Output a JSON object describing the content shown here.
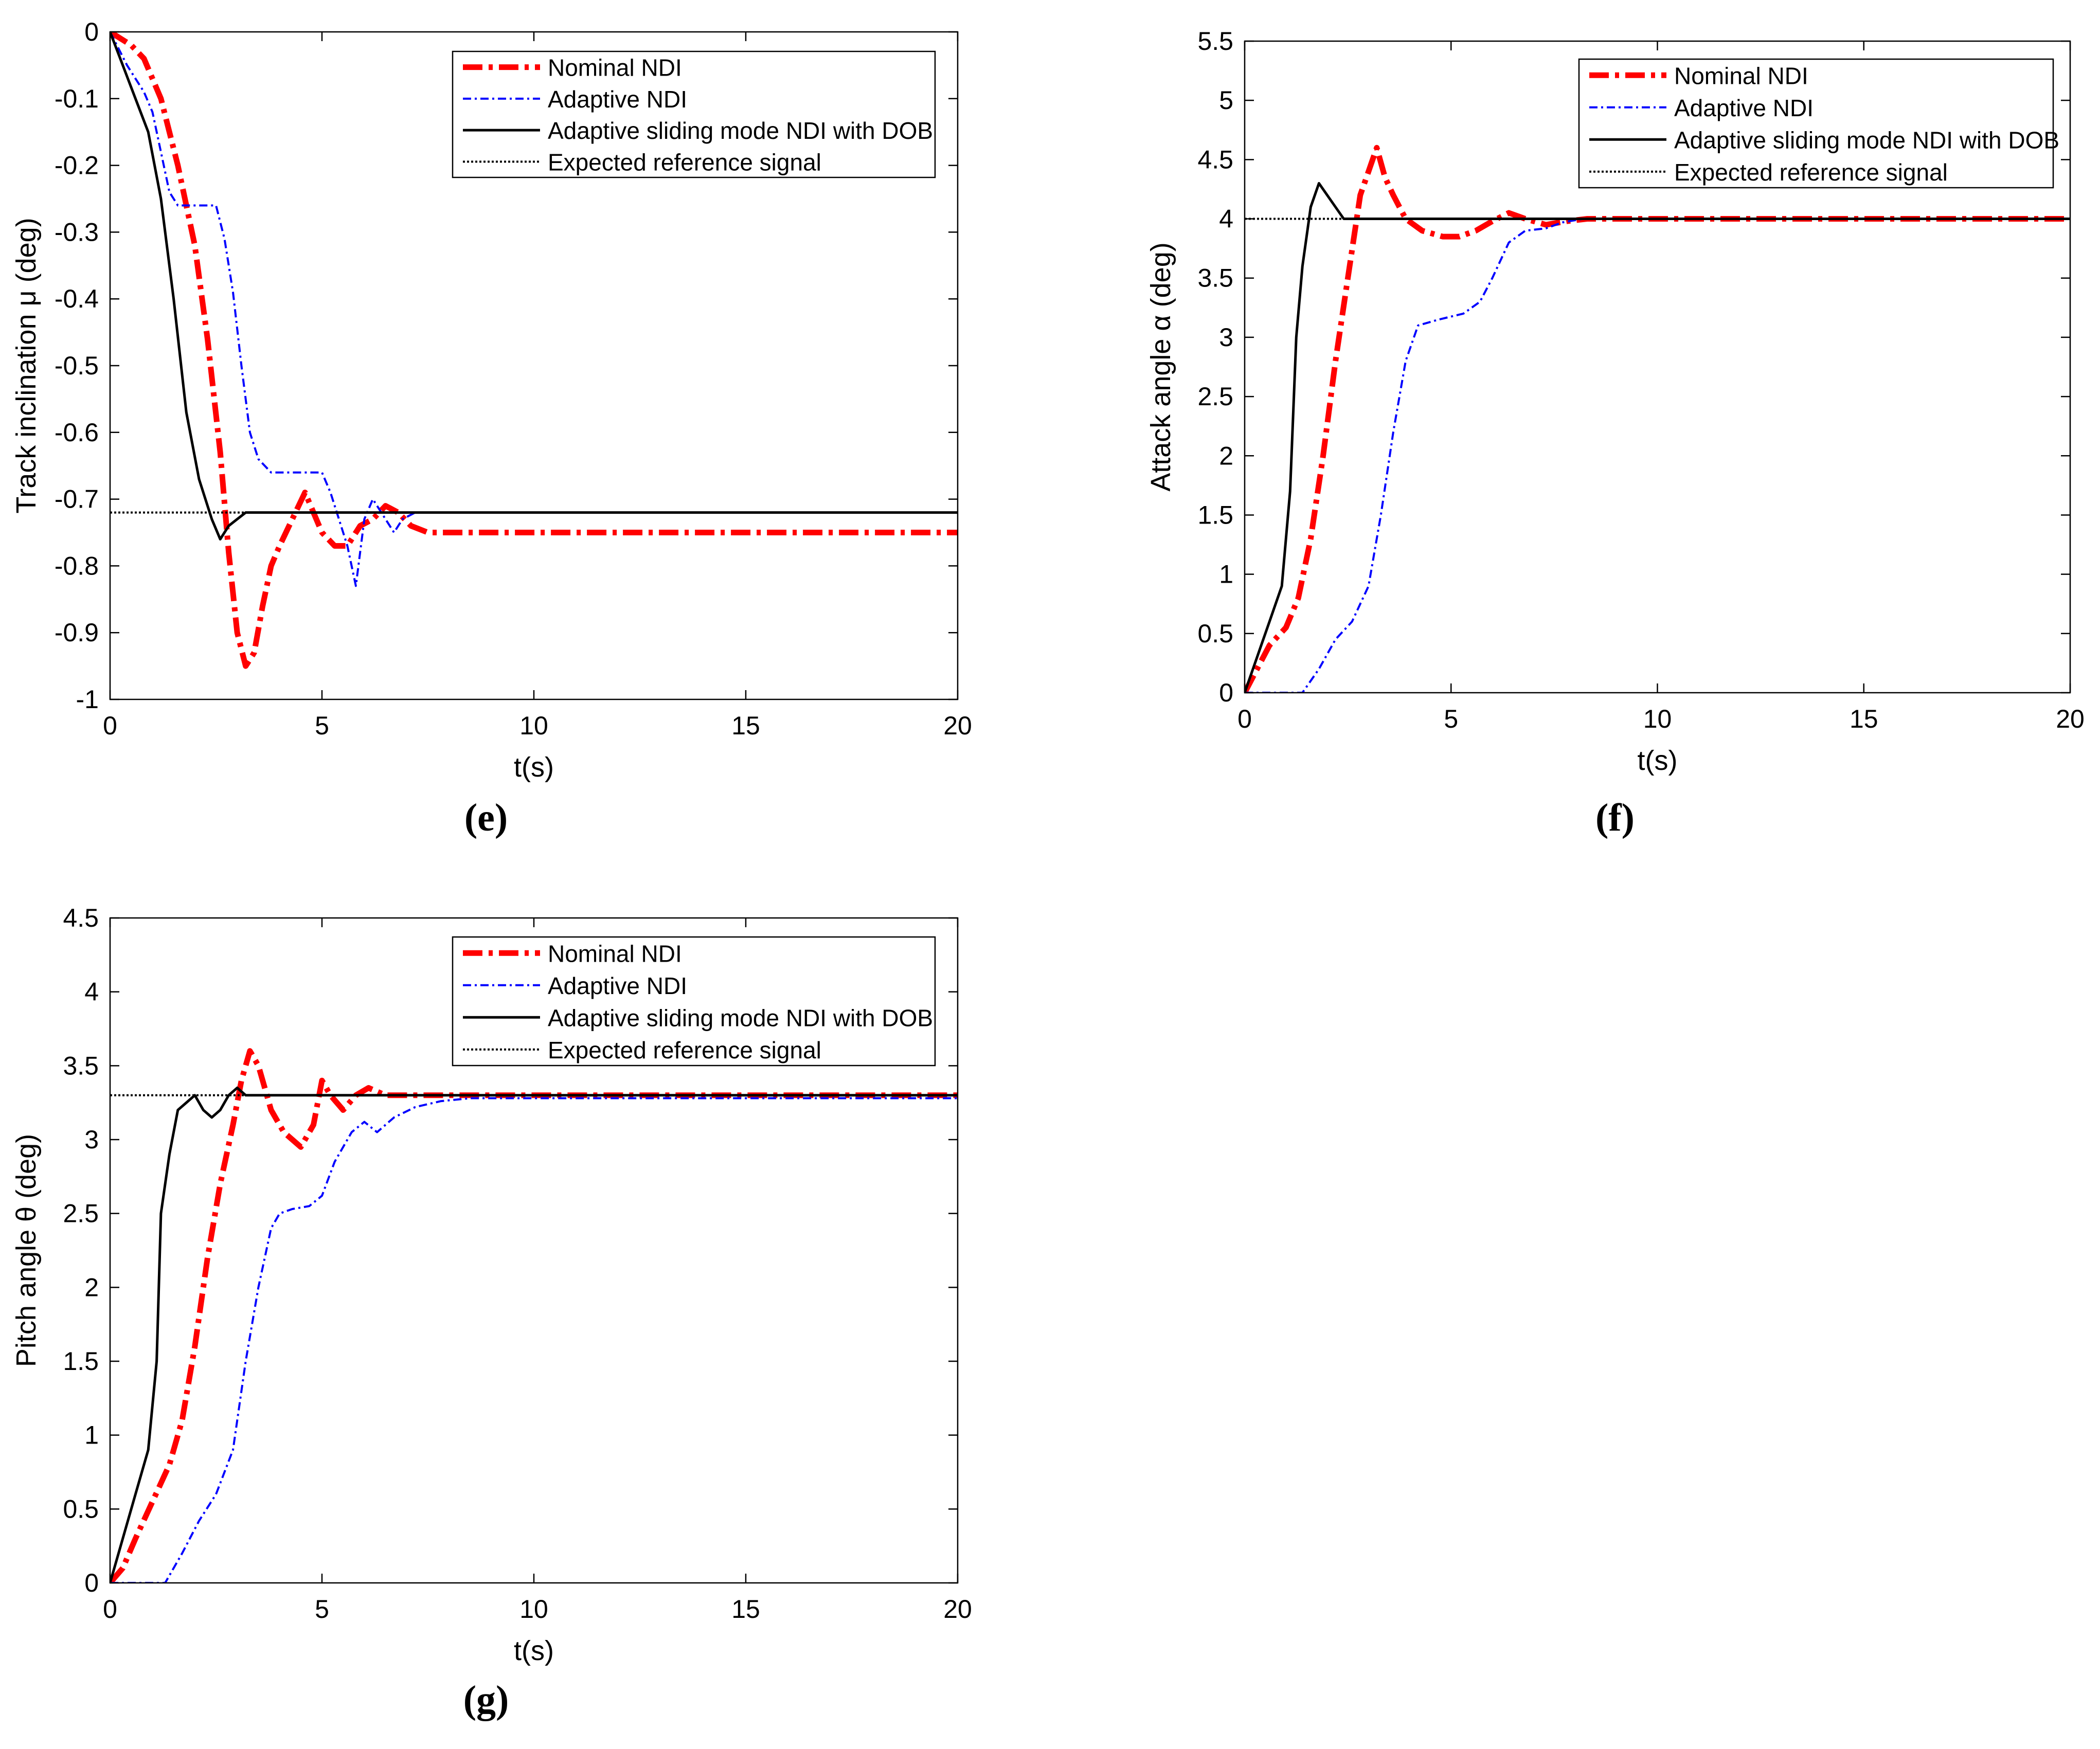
{
  "chart_data": [
    {
      "panel_id": "e",
      "caption": "(e)",
      "type": "line",
      "title": "",
      "xlabel": "t(s)",
      "ylabel": "Track inclination μ (deg)",
      "xlim": [
        0,
        20
      ],
      "ylim": [
        -1,
        0
      ],
      "xticks": [
        0,
        5,
        10,
        15,
        20
      ],
      "yticks": [
        0,
        -0.1,
        -0.2,
        -0.3,
        -0.4,
        -0.5,
        -0.6,
        -0.7,
        -0.8,
        -0.9,
        -1
      ],
      "ytick_labels": [
        "0",
        "-0.1",
        "-0.2",
        "-0.3",
        "-0.4",
        "-0.5",
        "-0.6",
        "-0.7",
        "-0.8",
        "-0.9",
        "-1"
      ],
      "grid": false,
      "legend_position": "top-right",
      "series": [
        {
          "name": "Nominal NDI",
          "color": "#ff0000",
          "style": "dashdot-thick",
          "x": [
            0,
            0.5,
            0.8,
            1.2,
            1.6,
            2.0,
            2.3,
            2.6,
            2.8,
            3.0,
            3.2,
            3.4,
            3.6,
            3.8,
            4.0,
            4.3,
            4.6,
            4.8,
            5.0,
            5.3,
            5.6,
            5.9,
            6.2,
            6.5,
            6.8,
            7.1,
            7.5,
            20
          ],
          "y": [
            0,
            -0.02,
            -0.04,
            -0.1,
            -0.2,
            -0.32,
            -0.46,
            -0.63,
            -0.78,
            -0.9,
            -0.95,
            -0.93,
            -0.86,
            -0.8,
            -0.77,
            -0.73,
            -0.69,
            -0.72,
            -0.75,
            -0.77,
            -0.77,
            -0.74,
            -0.73,
            -0.71,
            -0.72,
            -0.74,
            -0.75,
            -0.75
          ]
        },
        {
          "name": "Adaptive NDI",
          "color": "#0000ff",
          "style": "dashdot-thin",
          "x": [
            0,
            0.4,
            0.8,
            1.0,
            1.2,
            1.4,
            1.6,
            2.0,
            2.3,
            2.5,
            2.7,
            2.9,
            3.1,
            3.3,
            3.5,
            3.8,
            4.2,
            5.0,
            5.2,
            5.4,
            5.6,
            5.8,
            6.0,
            6.2,
            6.4,
            6.7,
            6.9,
            7.2,
            20
          ],
          "y": [
            0,
            -0.05,
            -0.09,
            -0.12,
            -0.18,
            -0.24,
            -0.26,
            -0.26,
            -0.26,
            -0.26,
            -0.31,
            -0.39,
            -0.5,
            -0.6,
            -0.64,
            -0.66,
            -0.66,
            -0.66,
            -0.69,
            -0.73,
            -0.77,
            -0.83,
            -0.73,
            -0.7,
            -0.72,
            -0.75,
            -0.73,
            -0.72,
            -0.72
          ]
        },
        {
          "name": "Adaptive sliding mode NDI with DOB",
          "color": "#000000",
          "style": "solid",
          "x": [
            0,
            0.3,
            0.6,
            0.9,
            1.2,
            1.5,
            1.8,
            2.1,
            2.4,
            2.6,
            2.8,
            3.0,
            3.2,
            20
          ],
          "y": [
            0,
            -0.05,
            -0.1,
            -0.15,
            -0.25,
            -0.4,
            -0.57,
            -0.67,
            -0.73,
            -0.76,
            -0.74,
            -0.73,
            -0.72,
            -0.72
          ]
        },
        {
          "name": "Expected reference signal",
          "color": "#000000",
          "style": "dotted",
          "x": [
            0,
            20
          ],
          "y": [
            -0.72,
            -0.72
          ]
        }
      ]
    },
    {
      "panel_id": "f",
      "caption": "(f)",
      "type": "line",
      "title": "",
      "xlabel": "t(s)",
      "ylabel": "Attack angle α (deg)",
      "xlim": [
        0,
        20
      ],
      "ylim": [
        0,
        5.5
      ],
      "xticks": [
        0,
        5,
        10,
        15,
        20
      ],
      "yticks": [
        0,
        0.5,
        1,
        1.5,
        2,
        2.5,
        3,
        3.5,
        4,
        4.5,
        5,
        5.5
      ],
      "ytick_labels": [
        "0",
        "0.5",
        "1",
        "1.5",
        "2",
        "2.5",
        "3",
        "3.5",
        "4",
        "4.5",
        "5",
        "5.5"
      ],
      "grid": false,
      "legend_position": "top-right",
      "series": [
        {
          "name": "Nominal NDI",
          "color": "#ff0000",
          "style": "dashdot-thick",
          "x": [
            0,
            0.3,
            0.6,
            1.0,
            1.3,
            1.6,
            1.9,
            2.2,
            2.5,
            2.8,
            3.0,
            3.2,
            3.4,
            3.6,
            3.9,
            4.3,
            4.8,
            5.2,
            5.6,
            6.0,
            6.4,
            6.8,
            7.3,
            7.8,
            8.3,
            20
          ],
          "y": [
            0,
            0.2,
            0.4,
            0.55,
            0.8,
            1.3,
            2.0,
            2.8,
            3.5,
            4.2,
            4.4,
            4.6,
            4.35,
            4.2,
            4.0,
            3.9,
            3.85,
            3.85,
            3.9,
            3.98,
            4.05,
            4.0,
            3.95,
            3.98,
            4.0,
            4.0
          ]
        },
        {
          "name": "Adaptive NDI",
          "color": "#0000ff",
          "style": "dashdot-thin",
          "x": [
            0,
            1.4,
            1.8,
            2.2,
            2.6,
            3.0,
            3.3,
            3.6,
            3.9,
            4.2,
            4.7,
            5.3,
            5.7,
            6.0,
            6.4,
            6.8,
            7.3,
            7.7,
            8.2,
            20
          ],
          "y": [
            0,
            0,
            0.2,
            0.45,
            0.6,
            0.9,
            1.5,
            2.2,
            2.8,
            3.1,
            3.15,
            3.2,
            3.3,
            3.5,
            3.8,
            3.9,
            3.92,
            3.97,
            4.0,
            4.0
          ]
        },
        {
          "name": "Adaptive sliding mode NDI with DOB",
          "color": "#000000",
          "style": "solid",
          "x": [
            0,
            0.3,
            0.6,
            0.9,
            1.1,
            1.25,
            1.4,
            1.6,
            1.8,
            2.1,
            2.4,
            20
          ],
          "y": [
            0,
            0.3,
            0.6,
            0.9,
            1.7,
            3.0,
            3.6,
            4.1,
            4.3,
            4.15,
            4.0,
            4.0
          ]
        },
        {
          "name": "Expected reference signal",
          "color": "#000000",
          "style": "dotted",
          "x": [
            0,
            20
          ],
          "y": [
            4,
            4
          ]
        }
      ]
    },
    {
      "panel_id": "g",
      "caption": "(g)",
      "type": "line",
      "title": "",
      "xlabel": "t(s)",
      "ylabel": "Pitch angle θ (deg)",
      "xlim": [
        0,
        20
      ],
      "ylim": [
        0,
        4.5
      ],
      "xticks": [
        0,
        5,
        10,
        15,
        20
      ],
      "yticks": [
        0,
        0.5,
        1,
        1.5,
        2,
        2.5,
        3,
        3.5,
        4,
        4.5
      ],
      "ytick_labels": [
        "0",
        "0.5",
        "1",
        "1.5",
        "2",
        "2.5",
        "3",
        "3.5",
        "4",
        "4.5"
      ],
      "grid": false,
      "legend_position": "top-right",
      "series": [
        {
          "name": "Nominal NDI",
          "color": "#ff0000",
          "style": "dashdot-thick",
          "x": [
            0,
            0.3,
            0.6,
            1.0,
            1.4,
            1.7,
            2.0,
            2.3,
            2.6,
            2.9,
            3.1,
            3.3,
            3.5,
            3.8,
            4.1,
            4.5,
            4.8,
            5.0,
            5.2,
            5.5,
            5.8,
            6.1,
            6.5,
            7.0,
            20
          ],
          "y": [
            0,
            0.1,
            0.3,
            0.55,
            0.8,
            1.1,
            1.6,
            2.2,
            2.7,
            3.1,
            3.4,
            3.6,
            3.5,
            3.2,
            3.05,
            2.95,
            3.1,
            3.4,
            3.3,
            3.2,
            3.3,
            3.35,
            3.3,
            3.3,
            3.3
          ]
        },
        {
          "name": "Adaptive NDI",
          "color": "#0000ff",
          "style": "dashdot-thin",
          "x": [
            0,
            1.3,
            1.7,
            2.1,
            2.5,
            2.9,
            3.2,
            3.5,
            3.8,
            4.0,
            4.3,
            4.7,
            5.0,
            5.3,
            5.7,
            6.0,
            6.3,
            6.7,
            7.2,
            7.8,
            8.5,
            20
          ],
          "y": [
            0,
            0,
            0.2,
            0.42,
            0.6,
            0.9,
            1.5,
            2.0,
            2.4,
            2.5,
            2.53,
            2.55,
            2.62,
            2.85,
            3.05,
            3.12,
            3.05,
            3.15,
            3.22,
            3.26,
            3.28,
            3.28
          ]
        },
        {
          "name": "Adaptive sliding mode NDI with DOB",
          "color": "#000000",
          "style": "solid",
          "x": [
            0,
            0.3,
            0.6,
            0.9,
            1.1,
            1.2,
            1.4,
            1.6,
            1.8,
            2.0,
            2.2,
            2.4,
            2.6,
            2.8,
            3.0,
            3.2,
            3.5,
            20
          ],
          "y": [
            0,
            0.3,
            0.6,
            0.9,
            1.5,
            2.5,
            2.9,
            3.2,
            3.25,
            3.3,
            3.2,
            3.15,
            3.2,
            3.3,
            3.35,
            3.3,
            3.3,
            3.3
          ]
        },
        {
          "name": "Expected reference signal",
          "color": "#000000",
          "style": "dotted",
          "x": [
            0,
            20
          ],
          "y": [
            3.3,
            3.3
          ]
        }
      ]
    }
  ]
}
